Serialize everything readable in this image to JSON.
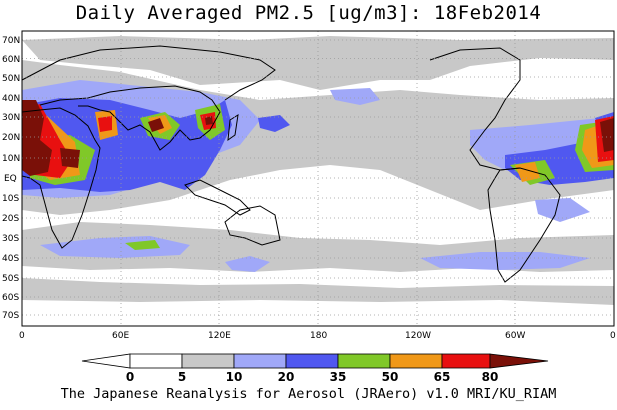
{
  "title": "Daily Averaged PM2.5 [ug/m3]: 18Feb2014",
  "credit": "The Japanese Reanalysis for Aerosol (JRAero) v1.0 MRI/KU_RIAM",
  "lat_labels": [
    "70N",
    "60N",
    "50N",
    "40N",
    "30N",
    "20N",
    "10N",
    "EQ",
    "10S",
    "20S",
    "30S",
    "40S",
    "50S",
    "60S",
    "70S"
  ],
  "lon_labels": [
    "0",
    "60E",
    "120E",
    "180",
    "120W",
    "60W",
    "0"
  ],
  "colorbar": {
    "ticks": [
      "0",
      "5",
      "10",
      "20",
      "35",
      "50",
      "65",
      "80"
    ],
    "colors": [
      "#ffffff",
      "#c8c8c8",
      "#a0a8f8",
      "#5058f0",
      "#80c828",
      "#f09818",
      "#e81010",
      "#7a1008"
    ]
  }
}
